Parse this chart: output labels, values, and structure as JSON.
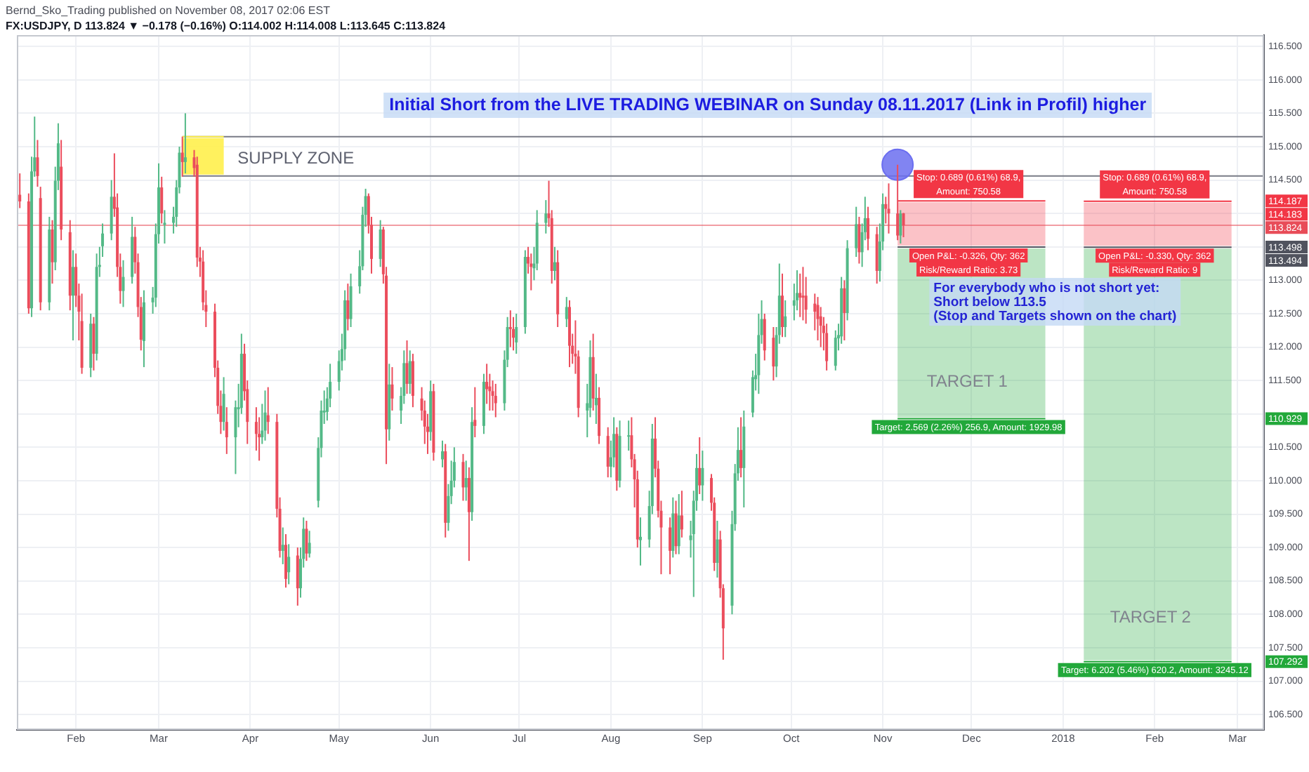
{
  "chart_data": {
    "type": "candlestick",
    "title": "Initial Short from the LIVE TRADING WEBINAR on Sunday 08.11.2017 (Link in Profil) higher",
    "annotations": [
      "Bernd_Sko_Trading published on November 08, 2017 02:06 EST",
      "FX:USDJPY, D 113.824 ▼ −0.178 (−0.16%) O:114.002 H:114.008 L:113.645 C:113.824",
      "SUPPLY ZONE",
      {
        "text": "Stop: 0.689 (0.61%) 68.9, Amount: 750.58",
        "x": "2017-11-30",
        "y": 114.187
      },
      {
        "text": "Stop: 0.689 (0.61%) 68.9, Amount: 750.58",
        "x": "2018-02-01",
        "y": 114.183
      },
      {
        "text": "Open P&L: -0.326, Qty: 362",
        "x": "2017-11-30",
        "y": 113.498
      },
      {
        "text": "Risk/Reward Ratio: 3.73",
        "x": "2017-11-30",
        "y": 113.498
      },
      {
        "text": "Open P&L: -0.330, Qty: 362",
        "x": "2018-02-01",
        "y": 113.494
      },
      {
        "text": "Risk/Reward Ratio: 9",
        "x": "2018-02-01",
        "y": 113.494
      },
      "For everybody who is not short yet:",
      "Short below 113.5",
      "(Stop and Targets shown on the chart)",
      "TARGET 1",
      "TARGET 2",
      {
        "text": "Target: 2.569 (2.26%) 256.9, Amount: 1929.98",
        "x": "2017-11-30",
        "y": 110.929
      },
      {
        "text": "Target: 6.202 (5.46%) 620.2, Amount: 3245.12",
        "x": "2018-02-01",
        "y": 107.292
      },
      "114.187",
      "114.183",
      "113.498",
      "113.494",
      "110.929",
      "107.292"
    ],
    "x": [
      "2017-01-13",
      "2017-01-16",
      "2017-01-17",
      "2017-01-18",
      "2017-01-19",
      "2017-01-20",
      "2017-01-23",
      "2017-01-24",
      "2017-01-25",
      "2017-01-26",
      "2017-01-27",
      "2017-01-30",
      "2017-01-31",
      "2017-02-01",
      "2017-02-02",
      "2017-02-03",
      "2017-02-06",
      "2017-02-07",
      "2017-02-08",
      "2017-02-09",
      "2017-02-10",
      "2017-02-13",
      "2017-02-14",
      "2017-02-15",
      "2017-02-16",
      "2017-02-17",
      "2017-02-20",
      "2017-02-21",
      "2017-02-22",
      "2017-02-23",
      "2017-02-24",
      "2017-02-27",
      "2017-02-28",
      "2017-03-01",
      "2017-03-02",
      "2017-03-03",
      "2017-03-06",
      "2017-03-07",
      "2017-03-08",
      "2017-03-09",
      "2017-03-10",
      "2017-03-13",
      "2017-03-14",
      "2017-03-15",
      "2017-03-16",
      "2017-03-17",
      "2017-03-20",
      "2017-03-21",
      "2017-03-22",
      "2017-03-23",
      "2017-03-24",
      "2017-03-27",
      "2017-03-28",
      "2017-03-29",
      "2017-03-30",
      "2017-03-31",
      "2017-04-03",
      "2017-04-04",
      "2017-04-05",
      "2017-04-06",
      "2017-04-07",
      "2017-04-10",
      "2017-04-11",
      "2017-04-12",
      "2017-04-13",
      "2017-04-14",
      "2017-04-17",
      "2017-04-18",
      "2017-04-19",
      "2017-04-20",
      "2017-04-21",
      "2017-04-24",
      "2017-04-25",
      "2017-04-26",
      "2017-04-27",
      "2017-04-28",
      "2017-05-01",
      "2017-05-02",
      "2017-05-03",
      "2017-05-04",
      "2017-05-05",
      "2017-05-08",
      "2017-05-09",
      "2017-05-10",
      "2017-05-11",
      "2017-05-12",
      "2017-05-15",
      "2017-05-16",
      "2017-05-17",
      "2017-05-18",
      "2017-05-19",
      "2017-05-22",
      "2017-05-23",
      "2017-05-24",
      "2017-05-25",
      "2017-05-26",
      "2017-05-29",
      "2017-05-30",
      "2017-05-31",
      "2017-06-01",
      "2017-06-02",
      "2017-06-05",
      "2017-06-06",
      "2017-06-07",
      "2017-06-08",
      "2017-06-09",
      "2017-06-12",
      "2017-06-13",
      "2017-06-14",
      "2017-06-15",
      "2017-06-16",
      "2017-06-19",
      "2017-06-20",
      "2017-06-21",
      "2017-06-22",
      "2017-06-23",
      "2017-06-26",
      "2017-06-27",
      "2017-06-28",
      "2017-06-29",
      "2017-06-30",
      "2017-07-03",
      "2017-07-04",
      "2017-07-05",
      "2017-07-06",
      "2017-07-07",
      "2017-07-10",
      "2017-07-11",
      "2017-07-12",
      "2017-07-13",
      "2017-07-14",
      "2017-07-17",
      "2017-07-18",
      "2017-07-19",
      "2017-07-20",
      "2017-07-21",
      "2017-07-24",
      "2017-07-25",
      "2017-07-26",
      "2017-07-27",
      "2017-07-28",
      "2017-07-31",
      "2017-08-01",
      "2017-08-02",
      "2017-08-03",
      "2017-08-04",
      "2017-08-07",
      "2017-08-08",
      "2017-08-09",
      "2017-08-10",
      "2017-08-11",
      "2017-08-14",
      "2017-08-15",
      "2017-08-16",
      "2017-08-17",
      "2017-08-18",
      "2017-08-21",
      "2017-08-22",
      "2017-08-23",
      "2017-08-24",
      "2017-08-25",
      "2017-08-28",
      "2017-08-29",
      "2017-08-30",
      "2017-08-31",
      "2017-09-01",
      "2017-09-04",
      "2017-09-05",
      "2017-09-06",
      "2017-09-07",
      "2017-09-08",
      "2017-09-11",
      "2017-09-12",
      "2017-09-13",
      "2017-09-14",
      "2017-09-15",
      "2017-09-18",
      "2017-09-19",
      "2017-09-20",
      "2017-09-21",
      "2017-09-22",
      "2017-09-25",
      "2017-09-26",
      "2017-09-27",
      "2017-09-28",
      "2017-09-29",
      "2017-10-02",
      "2017-10-03",
      "2017-10-04",
      "2017-10-05",
      "2017-10-06",
      "2017-10-09",
      "2017-10-10",
      "2017-10-11",
      "2017-10-12",
      "2017-10-13",
      "2017-10-16",
      "2017-10-17",
      "2017-10-18",
      "2017-10-19",
      "2017-10-20",
      "2017-10-23",
      "2017-10-24",
      "2017-10-25",
      "2017-10-26",
      "2017-10-27",
      "2017-10-30",
      "2017-10-31",
      "2017-11-01",
      "2017-11-02",
      "2017-11-03",
      "2017-11-06",
      "2017-11-07",
      "2017-11-08"
    ],
    "ohlc": [
      [
        114.28,
        114.6,
        114.08,
        114.18
      ],
      [
        114.18,
        114.3,
        112.5,
        112.58
      ],
      [
        112.58,
        114.85,
        112.45,
        114.63
      ],
      [
        114.63,
        115.45,
        114.55,
        114.84
      ],
      [
        114.84,
        115.1,
        114.4,
        114.56
      ],
      [
        114.23,
        114.4,
        112.55,
        112.67
      ],
      [
        112.67,
        113.95,
        112.55,
        113.76
      ],
      [
        113.76,
        113.9,
        112.95,
        113.27
      ],
      [
        113.27,
        114.7,
        113.15,
        114.49
      ],
      [
        114.49,
        115.35,
        114.35,
        115.05
      ],
      [
        114.7,
        115.1,
        113.6,
        113.76
      ],
      [
        113.72,
        113.9,
        112.55,
        112.77
      ],
      [
        112.77,
        113.45,
        112.1,
        113.2
      ],
      [
        113.2,
        113.4,
        112.6,
        112.77
      ],
      [
        112.77,
        112.95,
        112.1,
        112.53
      ],
      [
        112.39,
        112.8,
        111.6,
        111.69
      ],
      [
        111.69,
        112.5,
        111.55,
        112.35
      ],
      [
        112.35,
        112.45,
        111.65,
        111.9
      ],
      [
        111.9,
        113.4,
        111.8,
        113.2
      ],
      [
        113.2,
        113.5,
        113.05,
        113.23
      ],
      [
        113.51,
        113.85,
        113.35,
        113.7
      ],
      [
        113.7,
        114.5,
        113.6,
        114.25
      ],
      [
        114.25,
        114.9,
        113.95,
        114.07
      ],
      [
        114.09,
        114.3,
        113.05,
        113.2
      ],
      [
        113.2,
        113.4,
        112.65,
        112.84
      ],
      [
        112.84,
        113.3,
        112.6,
        113.05
      ],
      [
        113.05,
        113.95,
        112.95,
        113.65
      ],
      [
        113.65,
        113.8,
        113.1,
        113.27
      ],
      [
        113.27,
        113.4,
        112.45,
        112.6
      ],
      [
        112.6,
        112.75,
        111.95,
        112.11
      ],
      [
        112.09,
        112.85,
        111.7,
        112.67
      ],
      [
        112.67,
        112.9,
        112.5,
        112.74
      ],
      [
        112.74,
        113.85,
        112.6,
        113.69
      ],
      [
        113.69,
        114.75,
        113.55,
        114.39
      ],
      [
        114.39,
        114.55,
        113.85,
        114
      ],
      [
        113.83,
        114.05,
        113.55,
        113.86
      ],
      [
        113.86,
        114.1,
        113.7,
        113.95
      ],
      [
        113.95,
        114.5,
        113.8,
        114.39
      ],
      [
        114.39,
        115,
        114.3,
        114.91
      ],
      [
        114.91,
        115.15,
        114.55,
        114.77
      ],
      [
        114.77,
        115.5,
        114.6,
        114.84
      ],
      [
        114.84,
        114.95,
        114.55,
        114.68
      ],
      [
        114.73,
        114.85,
        113.2,
        113.34
      ],
      [
        113.34,
        113.5,
        113.05,
        113.28
      ],
      [
        113.28,
        113.45,
        112.55,
        112.67
      ],
      [
        112.63,
        112.85,
        112.3,
        112.53
      ],
      [
        112.53,
        112.65,
        111.55,
        111.69
      ],
      [
        111.69,
        111.8,
        111,
        111.12
      ],
      [
        111.12,
        111.35,
        110.7,
        110.88
      ],
      [
        110.88,
        111.55,
        110.75,
        111.3
      ],
      [
        110.88,
        111.1,
        110.4,
        110.65
      ],
      [
        110.65,
        111.2,
        110.1,
        111.1
      ],
      [
        111.07,
        111.45,
        110.8,
        111.1
      ],
      [
        111.09,
        112.2,
        111,
        111.9
      ],
      [
        111.9,
        112.05,
        111.2,
        111.34
      ],
      [
        111.37,
        111.5,
        110.55,
        110.88
      ],
      [
        110.88,
        111.1,
        110.45,
        110.7
      ],
      [
        110.7,
        110.95,
        110.3,
        110.65
      ],
      [
        110.65,
        111.15,
        110.55,
        110.75
      ],
      [
        110.75,
        111.35,
        110.6,
        111.02
      ],
      [
        110.98,
        111.4,
        110.7,
        110.88
      ],
      [
        110.88,
        111,
        109.45,
        109.58
      ],
      [
        109.58,
        109.75,
        108.85,
        108.95
      ],
      [
        108.95,
        109.3,
        108.75,
        109.04
      ],
      [
        109.04,
        109.2,
        108.4,
        108.53
      ],
      [
        108.63,
        109.05,
        108.45,
        108.86
      ],
      [
        108.88,
        109,
        108.13,
        108.39
      ],
      [
        108.39,
        109,
        108.25,
        108.83
      ],
      [
        108.83,
        109.45,
        108.7,
        109.28
      ],
      [
        109.28,
        109.4,
        108.8,
        108.91
      ],
      [
        108.91,
        109.25,
        108.85,
        109.07
      ],
      [
        109.7,
        110.65,
        109.6,
        110.49
      ],
      [
        110.49,
        111.2,
        110.35,
        111.05
      ],
      [
        111.02,
        111.35,
        110.85,
        111.05
      ],
      [
        111.03,
        111.4,
        110.9,
        111.23
      ],
      [
        111.23,
        111.75,
        111.1,
        111.48
      ],
      [
        111.48,
        111.95,
        111.35,
        111.79
      ],
      [
        111.79,
        112.2,
        111.65,
        111.97
      ],
      [
        111.97,
        112.85,
        111.8,
        112.7
      ],
      [
        112.7,
        112.95,
        112.25,
        112.42
      ],
      [
        112.42,
        113.1,
        112.3,
        112.91
      ],
      [
        112.91,
        113.45,
        112.8,
        113.21
      ],
      [
        113.21,
        114.1,
        113.15,
        113.98
      ],
      [
        113.98,
        114.37,
        113.8,
        114.26
      ],
      [
        114.26,
        114.3,
        113.7,
        113.83
      ],
      [
        113.83,
        113.95,
        113.1,
        113.32
      ],
      [
        113.32,
        113.9,
        113.2,
        113.76
      ],
      [
        113.76,
        113.8,
        112.95,
        113.09
      ],
      [
        113.07,
        113.2,
        110.25,
        110.77
      ],
      [
        110.77,
        111.75,
        110.6,
        111.44
      ],
      [
        111.44,
        111.7,
        111.05,
        111.23
      ],
      [
        111.05,
        111.4,
        110.85,
        111.27
      ],
      [
        111.27,
        111.95,
        111.15,
        111.76
      ],
      [
        111.76,
        112.1,
        111.3,
        111.45
      ],
      [
        111.45,
        111.95,
        111.3,
        111.79
      ],
      [
        111.79,
        111.9,
        111.1,
        111.27
      ],
      [
        111.23,
        111.4,
        110.9,
        111.05
      ],
      [
        111.05,
        111.2,
        110.55,
        110.81
      ],
      [
        110.81,
        111,
        110.4,
        110.73
      ],
      [
        110.73,
        111.5,
        110.6,
        111.34
      ],
      [
        111.34,
        111.45,
        110.3,
        110.42
      ],
      [
        110.32,
        110.6,
        110.2,
        110.44
      ],
      [
        110.44,
        110.55,
        109.15,
        109.37
      ],
      [
        109.37,
        109.95,
        109.25,
        109.77
      ],
      [
        109.77,
        110.3,
        109.65,
        110
      ],
      [
        110,
        110.5,
        109.9,
        110.28
      ],
      [
        110.28,
        110.4,
        109.7,
        109.9
      ],
      [
        109.9,
        110.3,
        109.7,
        110.04
      ],
      [
        110.04,
        110.2,
        108.8,
        109.53
      ],
      [
        109.53,
        111.1,
        109.4,
        110.88
      ],
      [
        110.91,
        111.4,
        110.65,
        110.82
      ],
      [
        110.82,
        111.6,
        110.7,
        111.48
      ],
      [
        111.48,
        111.75,
        111.15,
        111.37
      ],
      [
        111.41,
        111.6,
        111.05,
        111.34
      ],
      [
        111.34,
        111.5,
        111.05,
        111.27
      ],
      [
        111.27,
        111.45,
        110.95,
        111.16
      ],
      [
        111.16,
        111.95,
        111.05,
        111.81
      ],
      [
        111.81,
        112.45,
        111.7,
        112.3
      ],
      [
        112.3,
        112.55,
        112,
        112.27
      ],
      [
        112.27,
        112.45,
        111.95,
        112.14
      ],
      [
        112.07,
        112.5,
        111.9,
        112.3
      ],
      [
        112.3,
        113.45,
        112.2,
        113.35
      ],
      [
        113.35,
        113.5,
        113.1,
        113.25
      ],
      [
        113.25,
        113.4,
        112.85,
        113.2
      ],
      [
        113.18,
        113.5,
        113,
        113.25
      ],
      [
        113.25,
        114.05,
        113.15,
        113.86
      ],
      [
        113.86,
        114.2,
        113.7,
        114
      ],
      [
        114,
        114.49,
        113.8,
        113.93
      ],
      [
        113.93,
        114.05,
        112.95,
        113.14
      ],
      [
        113.14,
        113.5,
        113,
        113.27
      ],
      [
        113.27,
        113.45,
        112.3,
        112.49
      ],
      [
        112.42,
        112.75,
        112.3,
        112.6
      ],
      [
        112.6,
        112.7,
        111.7,
        112.02
      ],
      [
        112.02,
        112.2,
        111.75,
        111.9
      ],
      [
        111.9,
        112.4,
        111.6,
        111.86
      ],
      [
        111.86,
        111.95,
        110.95,
        111.09
      ],
      [
        111.05,
        111.45,
        110.65,
        111.16
      ],
      [
        111.09,
        112.1,
        110.95,
        111.85
      ],
      [
        111.85,
        112.2,
        111.05,
        111.23
      ],
      [
        111.13,
        111.6,
        110.85,
        111.24
      ],
      [
        111.24,
        111.4,
        110.55,
        110.67
      ],
      [
        110.67,
        110.8,
        110.05,
        110.21
      ],
      [
        110.21,
        110.6,
        110.05,
        110.35
      ],
      [
        110.35,
        110.95,
        110.2,
        110.7
      ],
      [
        110.7,
        110.8,
        109.85,
        110
      ],
      [
        110,
        110.9,
        109.9,
        110.67
      ],
      [
        110.67,
        110.9,
        110.45,
        110.68
      ],
      [
        110.68,
        110.95,
        110.2,
        110.32
      ],
      [
        110.32,
        110.4,
        109.6,
        110.02
      ],
      [
        110.02,
        110.15,
        109,
        109.12
      ],
      [
        109.11,
        109.45,
        108.73,
        109.16
      ],
      [
        109.12,
        109.85,
        109,
        109.62
      ],
      [
        109.62,
        110.85,
        109.5,
        110.63
      ],
      [
        110.63,
        110.95,
        110.05,
        110.18
      ],
      [
        110.18,
        110.3,
        109.45,
        109.55
      ],
      [
        109.55,
        109.7,
        108.6,
        109.3
      ],
      [
        109.3,
        109.45,
        108.6,
        108.95
      ],
      [
        108.95,
        109.75,
        108.85,
        109.51
      ],
      [
        109.51,
        109.7,
        108.9,
        109.02
      ],
      [
        109.02,
        109.8,
        108.9,
        109.48
      ],
      [
        109.48,
        109.85,
        109.15,
        109.27
      ],
      [
        109.11,
        109.4,
        108.85,
        109.18
      ],
      [
        109.2,
        109.85,
        108.26,
        109.7
      ],
      [
        109.7,
        110.4,
        109.55,
        110.19
      ],
      [
        110.19,
        110.65,
        109.8,
        109.93
      ],
      [
        109.93,
        110.45,
        109.7,
        110.19
      ],
      [
        110.04,
        110.1,
        109.55,
        109.67
      ],
      [
        109.67,
        109.75,
        108.65,
        108.77
      ],
      [
        108.77,
        109.4,
        108.55,
        109.12
      ],
      [
        109.12,
        109.25,
        108.25,
        108.39
      ],
      [
        108.39,
        108.45,
        107.32,
        107.79
      ],
      [
        108.13,
        109.55,
        108,
        109.35
      ],
      [
        109.35,
        110.25,
        109.25,
        110.11
      ],
      [
        110.11,
        110.8,
        110,
        110.46
      ],
      [
        110.46,
        110.95,
        110.05,
        110.19
      ],
      [
        110.19,
        111.05,
        109.6,
        110.81
      ],
      [
        111.02,
        111.65,
        110.95,
        111.55
      ],
      [
        111.52,
        111.9,
        111.35,
        111.58
      ],
      [
        111.58,
        112.5,
        111.3,
        112.18
      ],
      [
        112.18,
        112.7,
        112.05,
        112.42
      ],
      [
        112.42,
        112.5,
        111.8,
        111.95
      ],
      [
        112.14,
        112.3,
        111.5,
        111.71
      ],
      [
        111.71,
        112.3,
        111.55,
        112.18
      ],
      [
        112.18,
        113.25,
        112.05,
        112.77
      ],
      [
        112.77,
        113.1,
        112.15,
        112.3
      ],
      [
        112.3,
        112.7,
        112.15,
        112.46
      ],
      [
        112.62,
        112.95,
        112.4,
        112.7
      ],
      [
        112.7,
        113.15,
        112.55,
        112.81
      ],
      [
        112.81,
        113.1,
        112.45,
        112.74
      ],
      [
        112.77,
        113.2,
        112.4,
        112.74
      ],
      [
        112.77,
        113.05,
        112.35,
        112.56
      ],
      [
        112.65,
        112.8,
        112.25,
        112.53
      ],
      [
        112.63,
        112.75,
        112.1,
        112.42
      ],
      [
        112.46,
        112.6,
        112,
        112.32
      ],
      [
        112.32,
        112.45,
        111.95,
        112.21
      ],
      [
        112.21,
        112.35,
        111.65,
        111.79
      ],
      [
        111.72,
        112.25,
        111.65,
        112.14
      ],
      [
        112.13,
        112.35,
        111.95,
        112.18
      ],
      [
        112.16,
        113.05,
        112.05,
        112.88
      ],
      [
        112.88,
        113,
        112.1,
        112.51
      ],
      [
        112.51,
        113.6,
        112.4,
        113.48
      ],
      [
        113.48,
        114.1,
        113.35,
        113.84
      ],
      [
        113.84,
        113.95,
        113.25,
        113.42
      ],
      [
        113.42,
        113.85,
        113.2,
        113.72
      ],
      [
        113.72,
        114.25,
        113.6,
        113.93
      ],
      [
        113.93,
        114.1,
        113.45,
        113.62
      ],
      [
        113.69,
        113.8,
        112.95,
        113.14
      ],
      [
        113.14,
        113.85,
        112.98,
        113.58
      ],
      [
        113.58,
        114.3,
        113.45,
        114.14
      ],
      [
        114.14,
        114.25,
        113.85,
        114.07
      ],
      [
        114.07,
        114.45,
        113.7,
        114
      ],
      [
        114,
        114.73,
        113.6,
        113.67
      ],
      [
        113.67,
        114.05,
        113.55,
        114
      ],
      [
        114.002,
        114.008,
        113.645,
        113.824
      ]
    ],
    "colors": [
      "#eb4d5c",
      "#eb4d5c",
      "#53b987",
      "#53b987",
      "#eb4d5c",
      "#eb4d5c",
      "#53b987",
      "#eb4d5c",
      "#53b987",
      "#53b987",
      "#eb4d5c",
      "#eb4d5c",
      "#53b987",
      "#eb4d5c",
      "#eb4d5c",
      "#eb4d5c",
      "#53b987",
      "#eb4d5c",
      "#53b987",
      "#53b987",
      "#53b987",
      "#53b987",
      "#eb4d5c",
      "#eb4d5c",
      "#eb4d5c",
      "#53b987",
      "#53b987",
      "#eb4d5c",
      "#eb4d5c",
      "#eb4d5c",
      "#53b987",
      "#53b987",
      "#53b987",
      "#53b987",
      "#eb4d5c",
      "#53b987",
      "#53b987",
      "#53b987",
      "#53b987",
      "#eb4d5c",
      "#53b987",
      "#eb4d5c",
      "#eb4d5c",
      "#eb4d5c",
      "#eb4d5c",
      "#eb4d5c",
      "#eb4d5c",
      "#eb4d5c",
      "#eb4d5c",
      "#53b987",
      "#eb4d5c",
      "#53b987",
      "#53b987",
      "#53b987",
      "#eb4d5c",
      "#eb4d5c",
      "#eb4d5c",
      "#eb4d5c",
      "#53b987",
      "#53b987",
      "#eb4d5c",
      "#eb4d5c",
      "#eb4d5c",
      "#53b987",
      "#eb4d5c",
      "#53b987",
      "#eb4d5c",
      "#53b987",
      "#53b987",
      "#eb4d5c",
      "#53b987",
      "#53b987",
      "#53b987",
      "#53b987",
      "#53b987",
      "#53b987",
      "#53b987",
      "#53b987",
      "#53b987",
      "#eb4d5c",
      "#53b987",
      "#53b987",
      "#53b987",
      "#53b987",
      "#eb4d5c",
      "#eb4d5c",
      "#53b987",
      "#eb4d5c",
      "#eb4d5c",
      "#53b987",
      "#eb4d5c",
      "#53b987",
      "#53b987",
      "#eb4d5c",
      "#53b987",
      "#eb4d5c",
      "#eb4d5c",
      "#eb4d5c",
      "#eb4d5c",
      "#53b987",
      "#eb4d5c",
      "#53b987",
      "#eb4d5c",
      "#53b987",
      "#53b987",
      "#53b987",
      "#eb4d5c",
      "#53b987",
      "#eb4d5c",
      "#53b987",
      "#eb4d5c",
      "#53b987",
      "#eb4d5c",
      "#eb4d5c",
      "#eb4d5c",
      "#eb4d5c",
      "#53b987",
      "#53b987",
      "#eb4d5c",
      "#eb4d5c",
      "#53b987",
      "#53b987",
      "#eb4d5c",
      "#eb4d5c",
      "#53b987",
      "#53b987",
      "#53b987",
      "#eb4d5c",
      "#eb4d5c",
      "#53b987",
      "#eb4d5c",
      "#53b987",
      "#eb4d5c",
      "#eb4d5c",
      "#eb4d5c",
      "#eb4d5c",
      "#53b987",
      "#53b987",
      "#eb4d5c",
      "#53b987",
      "#eb4d5c",
      "#eb4d5c",
      "#53b987",
      "#53b987",
      "#eb4d5c",
      "#53b987",
      "#53b987",
      "#eb4d5c",
      "#eb4d5c",
      "#eb4d5c",
      "#53b987",
      "#53b987",
      "#53b987",
      "#eb4d5c",
      "#eb4d5c",
      "#eb4d5c",
      "#eb4d5c",
      "#53b987",
      "#eb4d5c",
      "#53b987",
      "#eb4d5c",
      "#53b987",
      "#53b987",
      "#53b987",
      "#eb4d5c",
      "#53b987",
      "#eb4d5c",
      "#eb4d5c",
      "#53b987",
      "#eb4d5c",
      "#eb4d5c",
      "#53b987",
      "#53b987",
      "#53b987",
      "#eb4d5c",
      "#53b987",
      "#53b987",
      "#53b987",
      "#53b987",
      "#53b987",
      "#eb4d5c",
      "#eb4d5c",
      "#53b987",
      "#53b987",
      "#eb4d5c",
      "#53b987",
      "#53b987",
      "#53b987",
      "#eb4d5c",
      "#eb4d5c",
      "#eb4d5c",
      "#eb4d5c",
      "#eb4d5c",
      "#eb4d5c",
      "#eb4d5c",
      "#eb4d5c",
      "#53b987",
      "#53b987",
      "#53b987",
      "#eb4d5c",
      "#53b987",
      "#53b987",
      "#eb4d5c",
      "#53b987",
      "#53b987",
      "#eb4d5c",
      "#eb4d5c",
      "#53b987",
      "#53b987",
      "#eb4d5c",
      "#eb4d5c",
      "#eb4d5c",
      "#53b987",
      "#eb4d5c"
    ],
    "series": [
      {
        "type": "line",
        "x": [
          "2017-03-09",
          "2018-03-10"
        ],
        "values": [
          115.15,
          115.15
        ],
        "color": "#787b86"
      },
      {
        "type": "line",
        "x": [
          "2017-03-09",
          "2018-03-10"
        ],
        "values": [
          114.56,
          114.56
        ],
        "color": "#787b86"
      },
      {
        "type": "line",
        "x": [
          "2017-03-09",
          "2017-03-23"
        ],
        "values": [
          115.15,
          115.15
        ],
        "lower": [
          114.56,
          114.56
        ],
        "upper": [
          115.15,
          115.15
        ],
        "color": "#fff04d"
      },
      {
        "type": "line",
        "x": [
          "2017-11-06",
          "2017-12-26"
        ],
        "values": [
          114.187,
          114.187
        ],
        "lower": [
          113.498,
          113.498
        ],
        "upper": [
          114.187,
          114.187
        ],
        "color": "#f23645"
      },
      {
        "type": "line",
        "x": [
          "2017-11-06",
          "2017-12-26"
        ],
        "values": [
          110.929,
          110.929
        ],
        "lower": [
          110.929,
          110.929
        ],
        "upper": [
          113.498,
          113.498
        ],
        "color": "#22a83a"
      },
      {
        "type": "line",
        "x": [
          "2017-11-06",
          "2017-12-26"
        ],
        "values": [
          113.498,
          113.498
        ],
        "color": "#50535e"
      },
      {
        "type": "line",
        "x": [
          "2018-01-08",
          "2018-02-27"
        ],
        "values": [
          114.183,
          114.183
        ],
        "lower": [
          113.494,
          113.494
        ],
        "upper": [
          114.183,
          114.183
        ],
        "color": "#f23645"
      },
      {
        "type": "line",
        "x": [
          "2018-01-08",
          "2018-02-27"
        ],
        "values": [
          107.292,
          107.292
        ],
        "lower": [
          107.292,
          107.292
        ],
        "upper": [
          113.494,
          113.494
        ],
        "color": "#22a83a"
      },
      {
        "type": "line",
        "x": [
          "2018-01-08",
          "2018-02-27"
        ],
        "values": [
          113.494,
          113.494
        ],
        "color": "#50535e"
      },
      {
        "type": "scatter",
        "x": [
          "2017-11-06"
        ],
        "values": [
          114.73
        ],
        "color": "#6b6ef0",
        "marker": "circle"
      }
    ],
    "ref_lines": [
      {
        "axis": "y",
        "value": 113.824,
        "label": "113.824",
        "color": "#e84c58"
      }
    ],
    "xlim": [
      "2017-01-12",
      "2018-03-10"
    ],
    "xticks": [
      {
        "value": "2017-02-01",
        "label": "Feb"
      },
      {
        "value": "2017-03-01",
        "label": "Mar"
      },
      {
        "value": "2017-04-01",
        "label": "Apr"
      },
      {
        "value": "2017-05-01",
        "label": "May"
      },
      {
        "value": "2017-06-01",
        "label": "Jun"
      },
      {
        "value": "2017-07-01",
        "label": "Jul"
      },
      {
        "value": "2017-08-01",
        "label": "Aug"
      },
      {
        "value": "2017-09-01",
        "label": "Sep"
      },
      {
        "value": "2017-10-01",
        "label": "Oct"
      },
      {
        "value": "2017-11-01",
        "label": "Nov"
      },
      {
        "value": "2017-12-01",
        "label": "Dec"
      },
      {
        "value": "2018-01-01",
        "label": "2018"
      },
      {
        "value": "2018-02-01",
        "label": "Feb"
      },
      {
        "value": "2018-03-01",
        "label": "Mar"
      }
    ],
    "ylim": [
      106.27,
      116.67
    ],
    "yticks": [
      {
        "value": 106.5,
        "label": "106.500"
      },
      {
        "value": 107,
        "label": "107.000"
      },
      {
        "value": 107.5,
        "label": "107.500"
      },
      {
        "value": 108,
        "label": "108.000"
      },
      {
        "value": 108.5,
        "label": "108.500"
      },
      {
        "value": 109,
        "label": "109.000"
      },
      {
        "value": 109.5,
        "label": "109.500"
      },
      {
        "value": 110,
        "label": "110.000"
      },
      {
        "value": 110.5,
        "label": "110.500"
      },
      {
        "value": 111,
        "label": null
      },
      {
        "value": 111.5,
        "label": "111.500"
      },
      {
        "value": 112,
        "label": "112.000"
      },
      {
        "value": 112.5,
        "label": "112.500"
      },
      {
        "value": 113,
        "label": "113.000"
      },
      {
        "value": 113.5,
        "label": null
      },
      {
        "value": 114,
        "label": null
      },
      {
        "value": 114.5,
        "label": "114.500"
      },
      {
        "value": 115,
        "label": "115.000"
      },
      {
        "value": 115.5,
        "label": "115.500"
      },
      {
        "value": 116,
        "label": "116.000"
      },
      {
        "value": 116.5,
        "label": "116.500"
      }
    ],
    "grid": true
  }
}
